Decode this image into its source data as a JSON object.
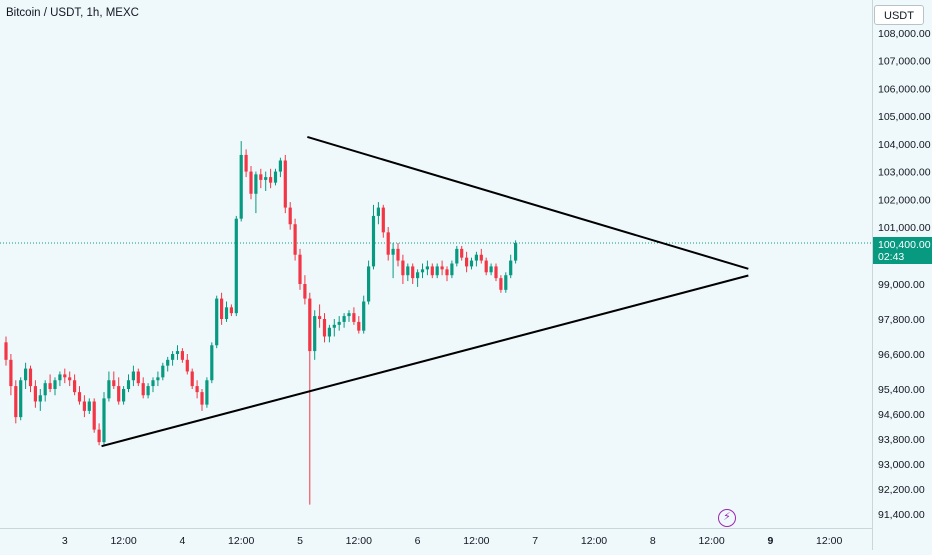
{
  "header": {
    "symbol_title": "Bitcoin / USDT, 1h, MEXC",
    "currency_button": "USDT"
  },
  "last_price": {
    "value": "100,400.00",
    "countdown": "02:43"
  },
  "colors": {
    "background": "#eff9fb",
    "up": "#089981",
    "down": "#f23645",
    "trendline": "#000000",
    "last_price_line": "#089981"
  },
  "icons": {
    "lightning": "lightning-icon"
  },
  "chart_data": {
    "type": "candlestick",
    "title": "Bitcoin / USDT, 1h, MEXC",
    "interval": "1h",
    "ylim": [
      91100,
      108500
    ],
    "y_ticks": [
      {
        "value": 108000,
        "label": "108,000.00"
      },
      {
        "value": 107000,
        "label": "107,000.00"
      },
      {
        "value": 106000,
        "label": "106,000.00"
      },
      {
        "value": 105000,
        "label": "105,000.00"
      },
      {
        "value": 104000,
        "label": "104,000.00"
      },
      {
        "value": 103000,
        "label": "103,000.00"
      },
      {
        "value": 102000,
        "label": "102,000.00"
      },
      {
        "value": 101000,
        "label": "101,000.00"
      },
      {
        "value": 99000,
        "label": "99,000.00"
      },
      {
        "value": 97800,
        "label": "97,800.00"
      },
      {
        "value": 96600,
        "label": "96,600.00"
      },
      {
        "value": 95400,
        "label": "95,400.00"
      },
      {
        "value": 94600,
        "label": "94,600.00"
      },
      {
        "value": 93800,
        "label": "93,800.00"
      },
      {
        "value": 93000,
        "label": "93,000.00"
      },
      {
        "value": 92200,
        "label": "92,200.00"
      },
      {
        "value": 91400,
        "label": "91,400.00"
      }
    ],
    "x_ticks": [
      {
        "t": 12,
        "label": "3",
        "bold": false
      },
      {
        "t": 24,
        "label": "12:00",
        "bold": false
      },
      {
        "t": 36,
        "label": "4",
        "bold": false
      },
      {
        "t": 48,
        "label": "12:00",
        "bold": false
      },
      {
        "t": 60,
        "label": "5",
        "bold": false
      },
      {
        "t": 72,
        "label": "12:00",
        "bold": false
      },
      {
        "t": 84,
        "label": "6",
        "bold": false
      },
      {
        "t": 96,
        "label": "12:00",
        "bold": false
      },
      {
        "t": 108,
        "label": "7",
        "bold": false
      },
      {
        "t": 120,
        "label": "12:00",
        "bold": false
      },
      {
        "t": 132,
        "label": "8",
        "bold": false
      },
      {
        "t": 144,
        "label": "12:00",
        "bold": false
      },
      {
        "t": 156,
        "label": "9",
        "bold": true
      },
      {
        "t": 168,
        "label": "12:00",
        "bold": false
      }
    ],
    "last_price": 100400,
    "trendlines": [
      {
        "name": "triangle-upper",
        "t1": 61.5,
        "p1": 104250,
        "t2": 151.5,
        "p2": 99520
      },
      {
        "name": "triangle-lower",
        "t1": 19.5,
        "p1": 93570,
        "t2": 151.5,
        "p2": 99290
      }
    ],
    "candles": [
      [
        97000,
        97200,
        96200,
        96400
      ],
      [
        96400,
        96600,
        95200,
        95500
      ],
      [
        95500,
        95700,
        94300,
        94500
      ],
      [
        94500,
        95800,
        94400,
        95700
      ],
      [
        95700,
        96300,
        95400,
        96100
      ],
      [
        96100,
        96200,
        95300,
        95500
      ],
      [
        95500,
        95700,
        94800,
        95000
      ],
      [
        95000,
        95400,
        94700,
        95200
      ],
      [
        95200,
        95700,
        95000,
        95600
      ],
      [
        95600,
        95900,
        95300,
        95400
      ],
      [
        95400,
        95800,
        95200,
        95700
      ],
      [
        95700,
        96000,
        95500,
        95900
      ],
      [
        95900,
        96100,
        95600,
        95800
      ],
      [
        95800,
        96000,
        95500,
        95700
      ],
      [
        95700,
        95900,
        95200,
        95300
      ],
      [
        95300,
        95500,
        94900,
        95000
      ],
      [
        95000,
        95200,
        94500,
        94700
      ],
      [
        94700,
        95100,
        94600,
        95000
      ],
      [
        95000,
        95100,
        94000,
        94100
      ],
      [
        94100,
        94300,
        93600,
        93700
      ],
      [
        93700,
        95300,
        93600,
        95100
      ],
      [
        95100,
        96000,
        95000,
        95700
      ],
      [
        95700,
        96000,
        95400,
        95500
      ],
      [
        95500,
        95800,
        94900,
        95000
      ],
      [
        95000,
        95500,
        94900,
        95400
      ],
      [
        95400,
        95900,
        95300,
        95700
      ],
      [
        95700,
        96200,
        95500,
        96000
      ],
      [
        96000,
        96100,
        95500,
        95600
      ],
      [
        95600,
        95800,
        95100,
        95200
      ],
      [
        95200,
        95600,
        95100,
        95500
      ],
      [
        95500,
        95800,
        95300,
        95700
      ],
      [
        95700,
        96000,
        95500,
        95800
      ],
      [
        95800,
        96300,
        95700,
        96200
      ],
      [
        96200,
        96500,
        96000,
        96400
      ],
      [
        96400,
        96700,
        96200,
        96600
      ],
      [
        96600,
        96900,
        96400,
        96700
      ],
      [
        96700,
        96800,
        96300,
        96400
      ],
      [
        96400,
        96600,
        95900,
        96000
      ],
      [
        96000,
        96100,
        95400,
        95500
      ],
      [
        95500,
        95700,
        95100,
        95300
      ],
      [
        95300,
        95400,
        94700,
        94900
      ],
      [
        94900,
        95800,
        94800,
        95700
      ],
      [
        95700,
        97000,
        95600,
        96900
      ],
      [
        96900,
        98600,
        96800,
        98500
      ],
      [
        98500,
        98700,
        97600,
        97800
      ],
      [
        97800,
        98400,
        97700,
        98200
      ],
      [
        98200,
        98300,
        97900,
        98000
      ],
      [
        98000,
        101400,
        97900,
        101300
      ],
      [
        101300,
        104100,
        101200,
        103600
      ],
      [
        103600,
        103800,
        102800,
        103000
      ],
      [
        103000,
        103200,
        102000,
        102200
      ],
      [
        102200,
        103000,
        101500,
        102900
      ],
      [
        102900,
        103100,
        102400,
        102700
      ],
      [
        102700,
        103000,
        102300,
        102800
      ],
      [
        102800,
        103100,
        102400,
        102600
      ],
      [
        102600,
        103100,
        102500,
        103000
      ],
      [
        103000,
        103500,
        102800,
        103400
      ],
      [
        103400,
        103600,
        101500,
        101700
      ],
      [
        101700,
        101900,
        100900,
        101100
      ],
      [
        101100,
        101300,
        99800,
        100000
      ],
      [
        100000,
        100200,
        98800,
        99000
      ],
      [
        99000,
        99300,
        98300,
        98500
      ],
      [
        98500,
        98700,
        91700,
        96700
      ],
      [
        96700,
        98100,
        96400,
        97900
      ],
      [
        97900,
        98300,
        97500,
        97800
      ],
      [
        97800,
        98000,
        97000,
        97200
      ],
      [
        97200,
        97600,
        97000,
        97500
      ],
      [
        97500,
        97800,
        97200,
        97600
      ],
      [
        97600,
        97900,
        97400,
        97700
      ],
      [
        97700,
        98000,
        97500,
        97900
      ],
      [
        97900,
        98100,
        97700,
        98000
      ],
      [
        98000,
        98200,
        97600,
        97700
      ],
      [
        97700,
        97900,
        97300,
        97400
      ],
      [
        97400,
        98600,
        97300,
        98400
      ],
      [
        98400,
        99800,
        98300,
        99600
      ],
      [
        99600,
        101800,
        99500,
        101400
      ],
      [
        101400,
        101900,
        101100,
        101700
      ],
      [
        101700,
        101800,
        100600,
        100800
      ],
      [
        100800,
        101000,
        99800,
        100000
      ],
      [
        100000,
        100400,
        99200,
        100200
      ],
      [
        100200,
        100400,
        99600,
        99800
      ],
      [
        99800,
        100000,
        99000,
        99300
      ],
      [
        99300,
        99700,
        99100,
        99600
      ],
      [
        99600,
        99700,
        99000,
        99200
      ],
      [
        99200,
        99500,
        98900,
        99400
      ],
      [
        99400,
        99700,
        99200,
        99500
      ],
      [
        99500,
        99800,
        99300,
        99600
      ],
      [
        99600,
        99700,
        99200,
        99300
      ],
      [
        99300,
        99700,
        99200,
        99600
      ],
      [
        99600,
        99800,
        99300,
        99500
      ],
      [
        99500,
        99600,
        99100,
        99300
      ],
      [
        99300,
        99800,
        99200,
        99700
      ],
      [
        99700,
        100300,
        99600,
        100200
      ],
      [
        100200,
        100300,
        99800,
        99900
      ],
      [
        99900,
        100100,
        99400,
        99600
      ],
      [
        99600,
        99900,
        99500,
        99800
      ],
      [
        99800,
        100100,
        99600,
        100000
      ],
      [
        100000,
        100200,
        99700,
        99800
      ],
      [
        99800,
        99900,
        99300,
        99400
      ],
      [
        99400,
        99700,
        99300,
        99600
      ],
      [
        99600,
        99700,
        99100,
        99200
      ],
      [
        99200,
        99300,
        98700,
        98800
      ],
      [
        98800,
        99400,
        98700,
        99300
      ],
      [
        99300,
        100000,
        99200,
        99800
      ],
      [
        99800,
        100500,
        99700,
        100400
      ]
    ]
  }
}
